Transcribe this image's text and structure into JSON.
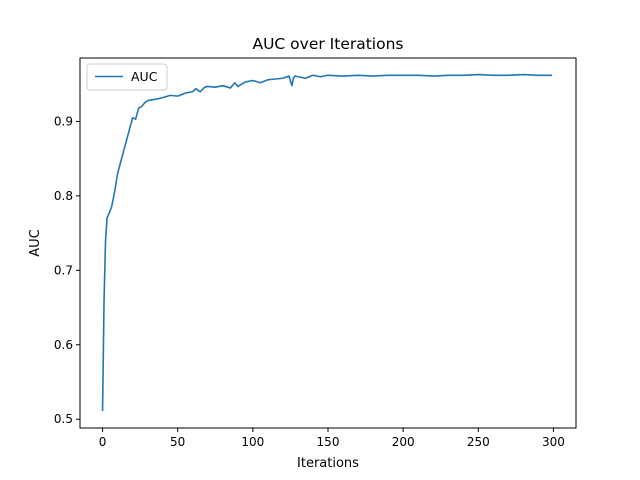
{
  "chart_data": {
    "type": "line",
    "title": "AUC over Iterations",
    "xlabel": "Iterations",
    "ylabel": "AUC",
    "xlim": [
      -15,
      315
    ],
    "ylim": [
      0.4882,
      0.9852
    ],
    "xticks": [
      0,
      50,
      100,
      150,
      200,
      250,
      300
    ],
    "xtick_labels": [
      "0",
      "50",
      "100",
      "150",
      "200",
      "250",
      "300"
    ],
    "yticks": [
      0.5,
      0.6,
      0.7,
      0.8,
      0.9
    ],
    "ytick_labels": [
      "0.5",
      "0.6",
      "0.7",
      "0.8",
      "0.9"
    ],
    "grid": false,
    "legend": {
      "position": "upper left",
      "entries": [
        "AUC"
      ]
    },
    "series": [
      {
        "name": "AUC",
        "color": "#1f77b4",
        "x": [
          0,
          1,
          2,
          3,
          4,
          6,
          8,
          10,
          12,
          14,
          16,
          18,
          20,
          22,
          24,
          26,
          28,
          30,
          33,
          36,
          40,
          45,
          50,
          55,
          60,
          62,
          65,
          68,
          70,
          75,
          80,
          85,
          88,
          90,
          95,
          100,
          105,
          110,
          115,
          120,
          124,
          126,
          127,
          128,
          130,
          135,
          140,
          145,
          150,
          160,
          170,
          180,
          190,
          200,
          210,
          220,
          230,
          240,
          250,
          260,
          270,
          280,
          290,
          299
        ],
        "y": [
          0.511,
          0.66,
          0.74,
          0.77,
          0.775,
          0.785,
          0.805,
          0.83,
          0.845,
          0.86,
          0.875,
          0.89,
          0.905,
          0.903,
          0.918,
          0.92,
          0.925,
          0.928,
          0.929,
          0.93,
          0.932,
          0.935,
          0.934,
          0.938,
          0.94,
          0.944,
          0.94,
          0.946,
          0.947,
          0.946,
          0.948,
          0.945,
          0.952,
          0.947,
          0.953,
          0.955,
          0.952,
          0.956,
          0.957,
          0.958,
          0.961,
          0.948,
          0.958,
          0.961,
          0.96,
          0.958,
          0.962,
          0.96,
          0.962,
          0.961,
          0.962,
          0.961,
          0.962,
          0.962,
          0.962,
          0.961,
          0.962,
          0.962,
          0.963,
          0.962,
          0.962,
          0.963,
          0.962,
          0.962
        ]
      }
    ]
  }
}
